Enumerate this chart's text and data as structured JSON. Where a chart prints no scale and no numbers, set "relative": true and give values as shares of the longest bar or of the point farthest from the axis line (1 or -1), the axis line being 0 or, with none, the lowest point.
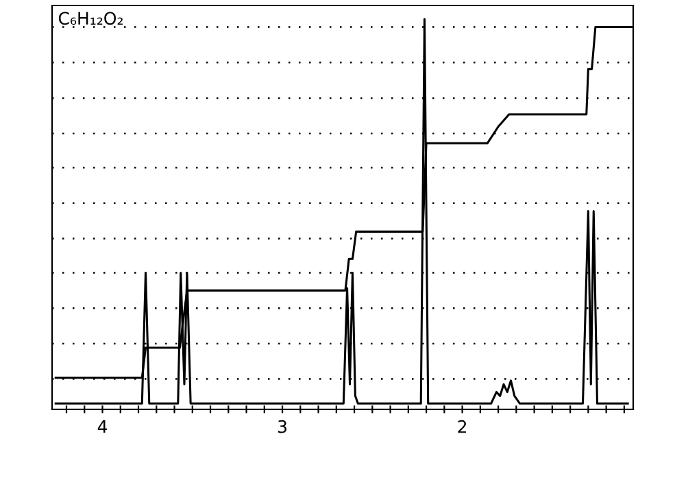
{
  "chart_data": {
    "type": "line",
    "relative": true,
    "annotations": [
      "C₆H₁₂O₂"
    ],
    "xlim": [
      4.28,
      1.05
    ],
    "xticks": [
      {
        "value": 4.2,
        "label": null
      },
      {
        "value": 4.1,
        "label": null
      },
      4,
      {
        "value": 3.9,
        "label": null
      },
      {
        "value": 3.8,
        "label": null
      },
      {
        "value": 3.7,
        "label": null
      },
      {
        "value": 3.6,
        "label": null
      },
      {
        "value": 3.5,
        "label": null
      },
      {
        "value": 3.4,
        "label": null
      },
      {
        "value": 3.3,
        "label": null
      },
      {
        "value": 3.2,
        "label": null
      },
      {
        "value": 3.1,
        "label": null
      },
      3,
      {
        "value": 2.9,
        "label": null
      },
      {
        "value": 2.8,
        "label": null
      },
      {
        "value": 2.7,
        "label": null
      },
      {
        "value": 2.6,
        "label": null
      },
      {
        "value": 2.5,
        "label": null
      },
      {
        "value": 2.4,
        "label": null
      },
      {
        "value": 2.3,
        "label": null
      },
      {
        "value": 2.2,
        "label": null
      },
      {
        "value": 2.1,
        "label": null
      },
      2,
      {
        "value": 1.9,
        "label": null
      },
      {
        "value": 1.8,
        "label": null
      },
      {
        "value": 1.7,
        "label": null
      },
      {
        "value": 1.6,
        "label": null
      },
      {
        "value": 1.5,
        "label": null
      },
      {
        "value": 1.4,
        "label": null
      },
      {
        "value": 1.3,
        "label": null
      },
      {
        "value": 1.2,
        "label": null
      },
      {
        "value": 1.1,
        "label": null
      }
    ],
    "tick_labels": "x",
    "series": [
      {
        "color": "#000000",
        "x": [
          4.26,
          3.78,
          3.76,
          3.74,
          3.58,
          3.565,
          3.545,
          3.53,
          3.51,
          2.66,
          2.64,
          2.625,
          2.61,
          2.595,
          2.58,
          2.23,
          2.21,
          2.19,
          1.84,
          1.81,
          1.79,
          1.77,
          1.75,
          1.73,
          1.71,
          1.68,
          1.33,
          1.3,
          1.285,
          1.27,
          1.25,
          1.08
        ],
        "values": [
          0,
          0,
          0.34,
          0,
          0,
          0.34,
          0.05,
          0.34,
          0,
          0,
          0.3,
          0.05,
          0.34,
          0.02,
          0,
          0,
          1.0,
          0,
          0,
          0.03,
          0.02,
          0.05,
          0.03,
          0.06,
          0.02,
          0,
          0,
          0.5,
          0.05,
          0.5,
          0,
          0
        ]
      },
      {
        "color": "#000000",
        "x": [
          4.26,
          3.78,
          3.76,
          3.57,
          3.55,
          3.53,
          2.65,
          2.63,
          2.61,
          2.59,
          2.22,
          2.2,
          1.86,
          1.8,
          1.74,
          1.31,
          1.3,
          1.28,
          1.26,
          1.06
        ],
        "values": [
          0.067,
          0.067,
          0.145,
          0.145,
          0.22,
          0.294,
          0.294,
          0.376,
          0.376,
          0.447,
          0.447,
          0.677,
          0.677,
          0.72,
          0.752,
          0.752,
          0.87,
          0.87,
          0.979,
          0.979
        ]
      }
    ],
    "ref_lines": [
      {
        "axis": "y",
        "value": 0.064,
        "line_style": "dotted",
        "color": "#000000"
      },
      {
        "axis": "y",
        "value": 0.156,
        "line_style": "dotted",
        "color": "#000000"
      },
      {
        "axis": "y",
        "value": 0.248,
        "line_style": "dotted",
        "color": "#000000"
      },
      {
        "axis": "y",
        "value": 0.34,
        "line_style": "dotted",
        "color": "#000000"
      },
      {
        "axis": "y",
        "value": 0.429,
        "line_style": "dotted",
        "color": "#000000"
      },
      {
        "axis": "y",
        "value": 0.521,
        "line_style": "dotted",
        "color": "#000000"
      },
      {
        "axis": "y",
        "value": 0.613,
        "line_style": "dotted",
        "color": "#000000"
      },
      {
        "axis": "y",
        "value": 0.702,
        "line_style": "dotted",
        "color": "#000000"
      },
      {
        "axis": "y",
        "value": 0.794,
        "line_style": "dotted",
        "color": "#000000"
      },
      {
        "axis": "y",
        "value": 0.887,
        "line_style": "dotted",
        "color": "#000000"
      },
      {
        "axis": "y",
        "value": 0.979,
        "line_style": "dotted",
        "color": "#000000"
      }
    ]
  }
}
